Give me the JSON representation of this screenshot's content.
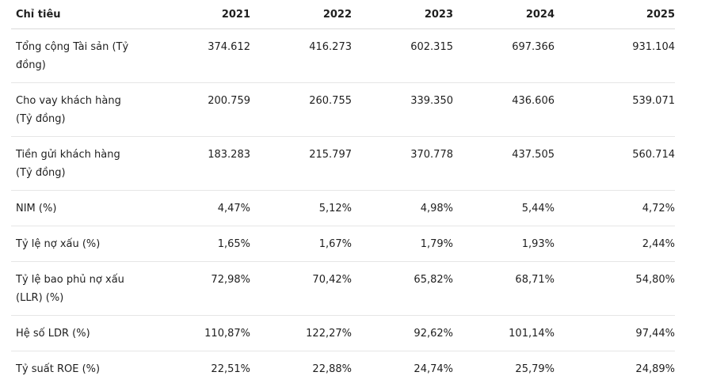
{
  "table": {
    "headers": [
      "Chỉ tiêu",
      "2021",
      "2022",
      "2023",
      "2024",
      "2025"
    ],
    "rows": [
      {
        "label": "Tổng cộng Tài sản (Tỷ đồng)",
        "values": [
          "374.612",
          "416.273",
          "602.315",
          "697.366",
          "931.104"
        ]
      },
      {
        "label": "Cho vay khách hàng (Tỷ đồng)",
        "values": [
          "200.759",
          "260.755",
          "339.350",
          "436.606",
          "539.071"
        ]
      },
      {
        "label": "Tiền gửi khách hàng (Tỷ đồng)",
        "values": [
          "183.283",
          "215.797",
          "370.778",
          "437.505",
          "560.714"
        ]
      },
      {
        "label": "NIM (%)",
        "values": [
          "4,47%",
          "5,12%",
          "4,98%",
          "5,44%",
          "4,72%"
        ]
      },
      {
        "label": "Tỷ lệ nợ xấu (%)",
        "values": [
          "1,65%",
          "1,67%",
          "1,79%",
          "1,93%",
          "2,44%"
        ]
      },
      {
        "label": "Tỷ lệ bao phủ nợ xấu (LLR) (%)",
        "values": [
          "72,98%",
          "70,42%",
          "65,82%",
          "68,71%",
          "54,80%"
        ]
      },
      {
        "label": "Hệ số LDR (%)",
        "values": [
          "110,87%",
          "122,27%",
          "92,62%",
          "101,14%",
          "97,44%"
        ]
      },
      {
        "label": "Tỷ suất ROE (%)",
        "values": [
          "22,51%",
          "22,88%",
          "24,74%",
          "25,79%",
          "24,89%"
        ]
      }
    ]
  }
}
